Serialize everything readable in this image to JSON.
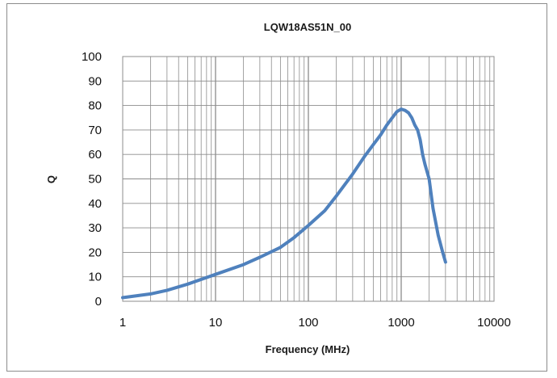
{
  "chart_data": {
    "type": "line",
    "title": "LQW18AS51N_00",
    "xlabel": "Frequency (MHz)",
    "ylabel": "Q",
    "xscale": "log",
    "xlim": [
      1,
      10000
    ],
    "ylim": [
      0,
      100
    ],
    "x_ticks": [
      "1",
      "10",
      "100",
      "1000",
      "10000"
    ],
    "y_ticks": [
      "0",
      "10",
      "20",
      "30",
      "40",
      "50",
      "60",
      "70",
      "80",
      "90",
      "100"
    ],
    "grid": true,
    "legend": "none",
    "colors": {
      "line": "#4f81bd",
      "grid": "#8c8c8c",
      "border": "#8c8c8c"
    },
    "series": [
      {
        "values": [
          [
            1,
            1.5
          ],
          [
            2,
            3
          ],
          [
            3,
            4.5
          ],
          [
            5,
            7
          ],
          [
            10,
            11
          ],
          [
            20,
            15
          ],
          [
            30,
            18
          ],
          [
            50,
            22
          ],
          [
            70,
            26
          ],
          [
            100,
            31
          ],
          [
            150,
            37
          ],
          [
            200,
            43
          ],
          [
            300,
            52
          ],
          [
            400,
            59
          ],
          [
            500,
            64
          ],
          [
            600,
            68
          ],
          [
            700,
            72
          ],
          [
            800,
            75
          ],
          [
            900,
            77.5
          ],
          [
            1000,
            78.5
          ],
          [
            1100,
            78
          ],
          [
            1200,
            77
          ],
          [
            1300,
            75
          ],
          [
            1400,
            72
          ],
          [
            1500,
            70
          ],
          [
            1600,
            66
          ],
          [
            1700,
            60
          ],
          [
            1800,
            56
          ],
          [
            2000,
            50
          ],
          [
            2200,
            38
          ],
          [
            2500,
            27
          ],
          [
            2800,
            20
          ],
          [
            3000,
            16
          ]
        ]
      }
    ]
  }
}
